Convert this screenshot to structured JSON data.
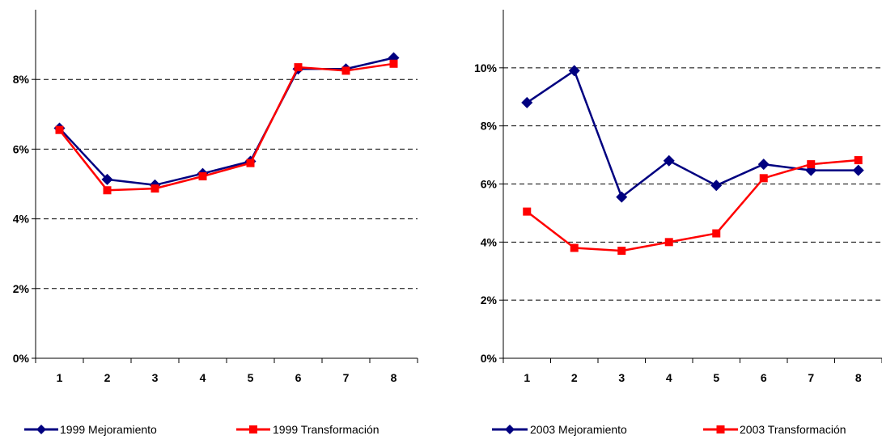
{
  "colors": {
    "navy": "#000080",
    "red": "#ff0000"
  },
  "chart_data": [
    {
      "type": "line",
      "categories": [
        "1",
        "2",
        "3",
        "4",
        "5",
        "6",
        "7",
        "8"
      ],
      "ylim": [
        0,
        10
      ],
      "y_ticks": [
        0,
        2,
        4,
        6,
        8
      ],
      "y_tick_labels": [
        "0%",
        "2%",
        "4%",
        "6%",
        "8%"
      ],
      "grid": true,
      "legend_placement": "bottom",
      "series": [
        {
          "name": "1999 Mejoramiento",
          "color": "#000080",
          "marker": "diamond",
          "values": [
            6.6,
            5.13,
            4.97,
            5.3,
            5.65,
            8.3,
            8.3,
            8.62
          ]
        },
        {
          "name": "1999 Transformación",
          "color": "#ff0000",
          "marker": "square",
          "values": [
            6.55,
            4.82,
            4.87,
            5.22,
            5.6,
            8.35,
            8.25,
            8.45
          ]
        }
      ]
    },
    {
      "type": "line",
      "categories": [
        "1",
        "2",
        "3",
        "4",
        "5",
        "6",
        "7",
        "8"
      ],
      "ylim": [
        0,
        12
      ],
      "y_ticks": [
        0,
        2,
        4,
        6,
        8,
        10
      ],
      "y_tick_labels": [
        "0%",
        "2%",
        "4%",
        "6%",
        "8%",
        "10%"
      ],
      "grid": true,
      "legend_placement": "bottom",
      "series": [
        {
          "name": "2003 Mejoramiento",
          "color": "#000080",
          "marker": "diamond",
          "values": [
            8.8,
            9.9,
            5.55,
            6.8,
            5.95,
            6.68,
            6.47,
            6.47
          ]
        },
        {
          "name": "2003 Transformación",
          "color": "#ff0000",
          "marker": "square",
          "values": [
            5.05,
            3.8,
            3.7,
            4.0,
            4.3,
            6.2,
            6.68,
            6.82
          ]
        }
      ]
    }
  ]
}
